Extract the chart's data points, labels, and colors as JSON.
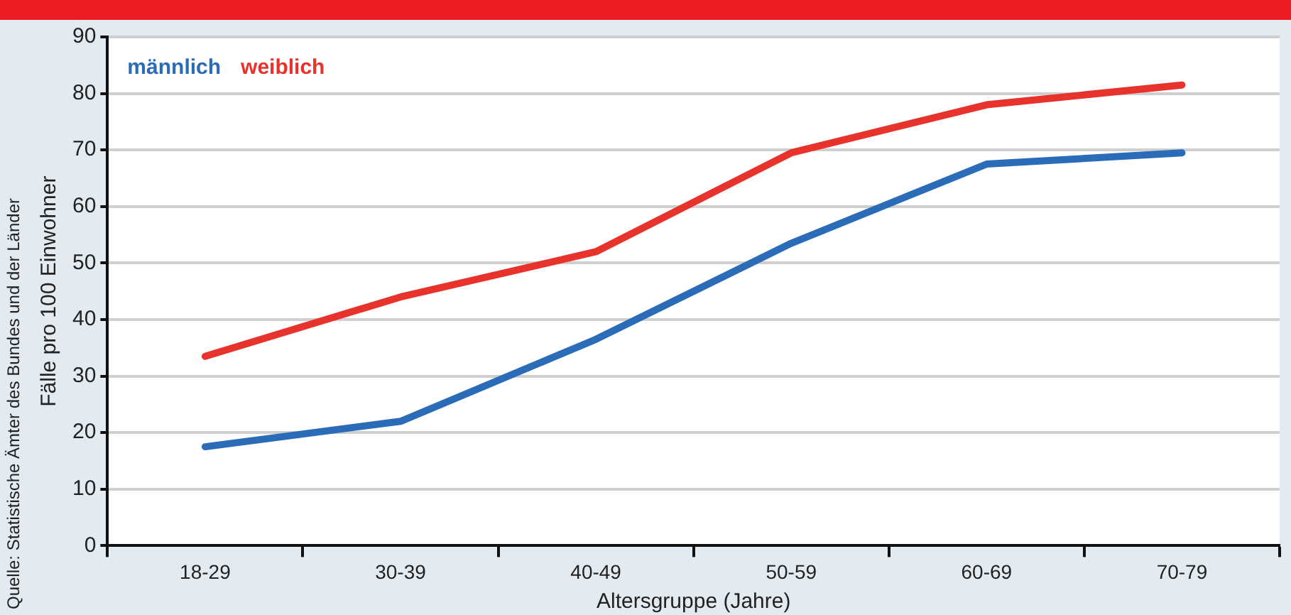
{
  "chart_data": {
    "type": "line",
    "xlabel": "Altersgruppe (Jahre)",
    "ylabel": "Fälle pro 100 Einwohner",
    "categories": [
      "18-29",
      "30-39",
      "40-49",
      "50-59",
      "60-69",
      "70-79"
    ],
    "series": [
      {
        "name": "männlich",
        "color": "#2b6cb8",
        "values": [
          17.5,
          22,
          36.5,
          53.5,
          67.5,
          69.5
        ]
      },
      {
        "name": "weiblich",
        "color": "#e8322c",
        "values": [
          33.5,
          44,
          52,
          69.5,
          78,
          81.5
        ]
      }
    ],
    "ylim": [
      0,
      90
    ],
    "yticks": [
      0,
      10,
      20,
      30,
      40,
      50,
      60,
      70,
      80,
      90
    ],
    "grid": "y",
    "legend": "top left",
    "marker": "none",
    "line_style": "solid",
    "annotations": [
      "Quelle: Statistische Ämter des Bundes und der Länder"
    ]
  }
}
